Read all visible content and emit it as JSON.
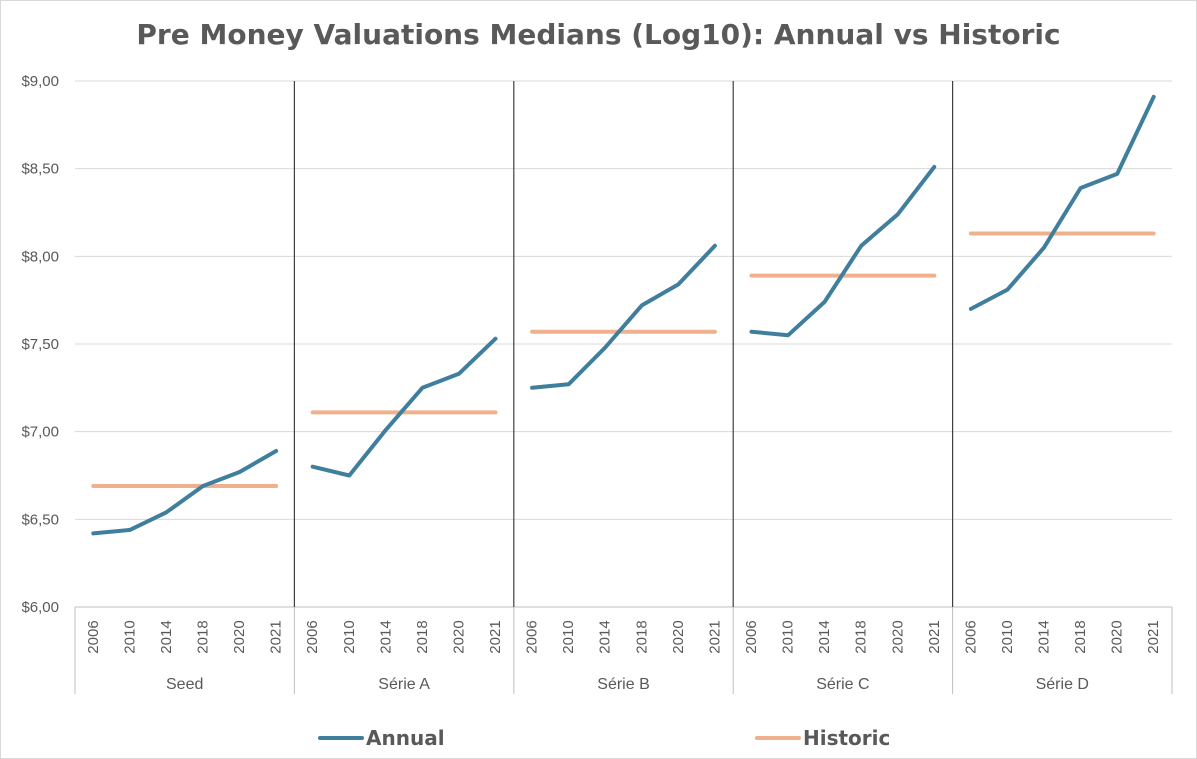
{
  "chart_data": {
    "type": "line",
    "title": "Pre Money Valuations Medians (Log10): Annual vs Historic",
    "y_tick_labels": [
      "$6,00",
      "$6,50",
      "$7,00",
      "$7,50",
      "$8,00",
      "$8,50",
      "$9,00"
    ],
    "y_ticks": [
      6.0,
      6.5,
      7.0,
      7.5,
      8.0,
      8.5,
      9.0
    ],
    "ylim": [
      6.0,
      9.0
    ],
    "grid": true,
    "legend_position": "bottom",
    "groups": [
      {
        "label": "Seed",
        "x": [
          "2006",
          "2010",
          "2014",
          "2018",
          "2020",
          "2021"
        ],
        "series": [
          {
            "name": "Annual",
            "values": [
              6.42,
              6.44,
              6.54,
              6.69,
              6.77,
              6.89
            ]
          },
          {
            "name": "Historic",
            "values": [
              6.69,
              6.69,
              6.69,
              6.69,
              6.69,
              6.69
            ]
          }
        ]
      },
      {
        "label": "Série A",
        "x": [
          "2006",
          "2010",
          "2014",
          "2018",
          "2020",
          "2021"
        ],
        "series": [
          {
            "name": "Annual",
            "values": [
              6.8,
              6.75,
              7.01,
              7.25,
              7.33,
              7.53
            ]
          },
          {
            "name": "Historic",
            "values": [
              7.11,
              7.11,
              7.11,
              7.11,
              7.11,
              7.11
            ]
          }
        ]
      },
      {
        "label": "Série B",
        "x": [
          "2006",
          "2010",
          "2014",
          "2018",
          "2020",
          "2021"
        ],
        "series": [
          {
            "name": "Annual",
            "values": [
              7.25,
              7.27,
              7.48,
              7.72,
              7.84,
              8.06
            ]
          },
          {
            "name": "Historic",
            "values": [
              7.57,
              7.57,
              7.57,
              7.57,
              7.57,
              7.57
            ]
          }
        ]
      },
      {
        "label": "Série C",
        "x": [
          "2006",
          "2010",
          "2014",
          "2018",
          "2020",
          "2021"
        ],
        "series": [
          {
            "name": "Annual",
            "values": [
              7.57,
              7.55,
              7.74,
              8.06,
              8.24,
              8.51
            ]
          },
          {
            "name": "Historic",
            "values": [
              7.89,
              7.89,
              7.89,
              7.89,
              7.89,
              7.89
            ]
          }
        ]
      },
      {
        "label": "Série D",
        "x": [
          "2006",
          "2010",
          "2014",
          "2018",
          "2020",
          "2021"
        ],
        "series": [
          {
            "name": "Annual",
            "values": [
              7.7,
              7.81,
              8.05,
              8.39,
              8.47,
              8.91
            ]
          },
          {
            "name": "Historic",
            "values": [
              8.13,
              8.13,
              8.13,
              8.13,
              8.13,
              8.13
            ]
          }
        ]
      }
    ],
    "legend": [
      {
        "name": "Annual",
        "color": "#3f7e9c"
      },
      {
        "name": "Historic",
        "color": "#f0b08e"
      }
    ],
    "colors": {
      "annual": "#3f7e9c",
      "historic": "#f0b08e",
      "grid": "#d9d9d9",
      "separator": "#404040",
      "axis": "#bfbfbf"
    }
  }
}
